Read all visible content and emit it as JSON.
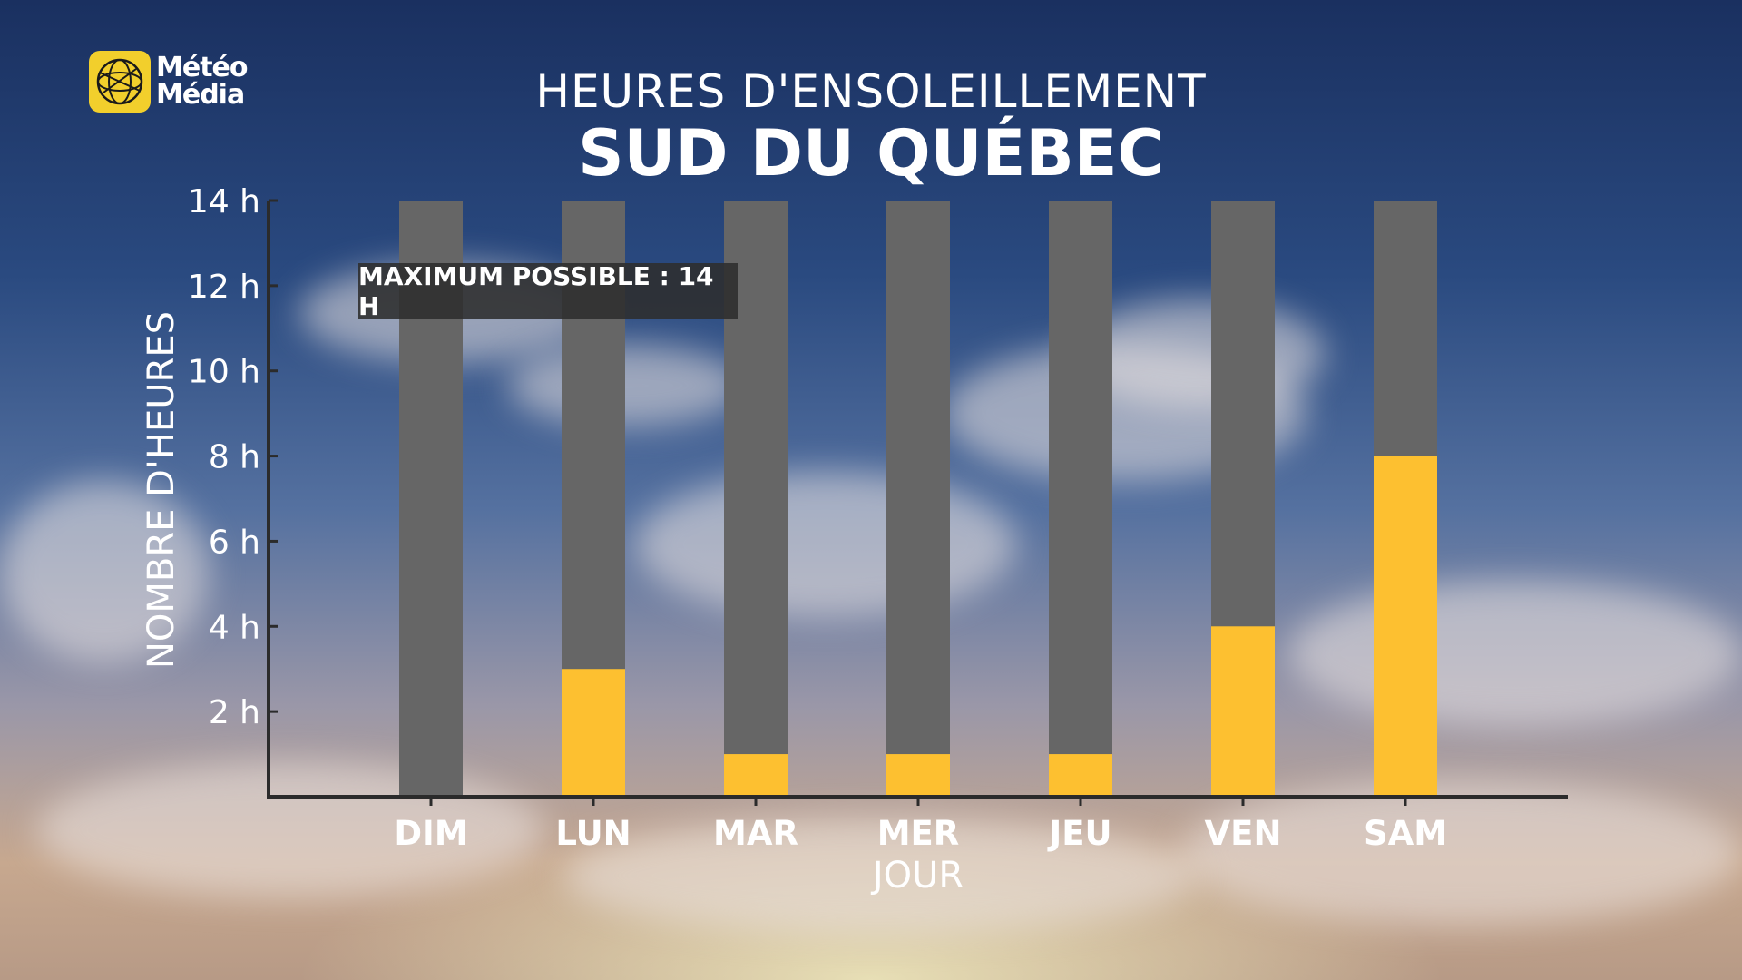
{
  "brand": {
    "line1": "Météo",
    "line2": "Média"
  },
  "chart_data": {
    "type": "bar",
    "title": "HEURES D'ENSOLEILLEMENT",
    "subtitle": "SUD DU QUÉBEC",
    "xlabel": "JOUR",
    "ylabel": "NOMBRE D'HEURES",
    "categories": [
      "DIM",
      "LUN",
      "MAR",
      "MER",
      "JEU",
      "VEN",
      "SAM"
    ],
    "max_possible": 14,
    "series": [
      {
        "values": [
          0,
          3,
          1,
          1,
          1,
          4,
          8
        ]
      }
    ],
    "ylim": [
      0,
      14
    ],
    "yticks": [
      2,
      4,
      6,
      8,
      10,
      12,
      14
    ],
    "ytick_labels": [
      "2 h",
      "4 h",
      "6 h",
      "8 h",
      "10 h",
      "12 h",
      "14 h"
    ],
    "annotation": "MAXIMUM POSSIBLE : 14 H",
    "colors": {
      "bar": "#fdc030",
      "background_bar": "#666666",
      "axis": "#2b2b2b"
    },
    "grid": false
  }
}
